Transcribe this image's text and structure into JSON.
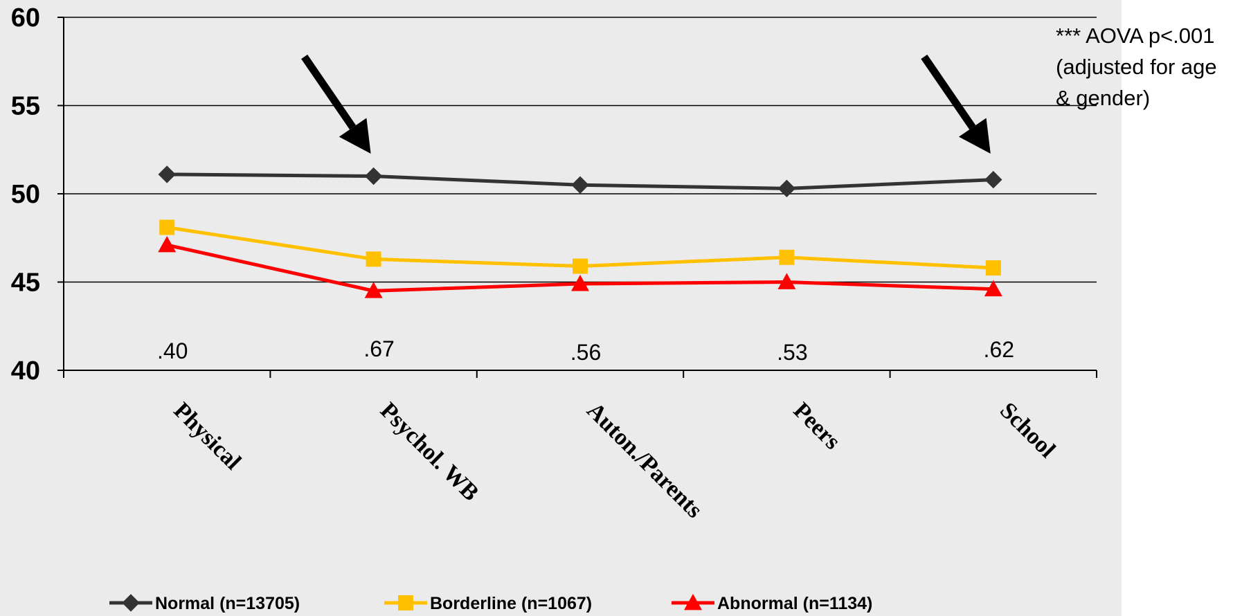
{
  "chart_data": {
    "type": "line",
    "categories": [
      "Physical",
      "Psychol. WB",
      "Auton./Parents",
      "Peers",
      "School"
    ],
    "series": [
      {
        "name": "Normal (n=13705)",
        "color": "#333333",
        "marker": "diamond",
        "values": [
          51.1,
          51.0,
          50.5,
          50.3,
          50.8
        ]
      },
      {
        "name": "Borderline (n=1067)",
        "color": "#ffc000",
        "marker": "square",
        "values": [
          48.1,
          46.3,
          45.9,
          46.4,
          45.8
        ]
      },
      {
        "name": "Abnormal (n=1134)",
        "color": "#ff0000",
        "marker": "triangle",
        "values": [
          47.1,
          44.5,
          44.9,
          45.0,
          44.6
        ]
      }
    ],
    "ylim": [
      40,
      60
    ],
    "yticks": [
      40,
      45,
      50,
      55,
      60
    ],
    "grid": true,
    "legend_position": "bottom",
    "annotations": {
      "correlations": [
        ".40",
        ".67",
        ".56",
        ".53",
        ".62"
      ],
      "note_lines": [
        "*** AOVA p<.001",
        "(adjusted for age",
        "& gender)"
      ],
      "arrows_at_categories": [
        "Psychol. WB",
        "School"
      ]
    }
  }
}
